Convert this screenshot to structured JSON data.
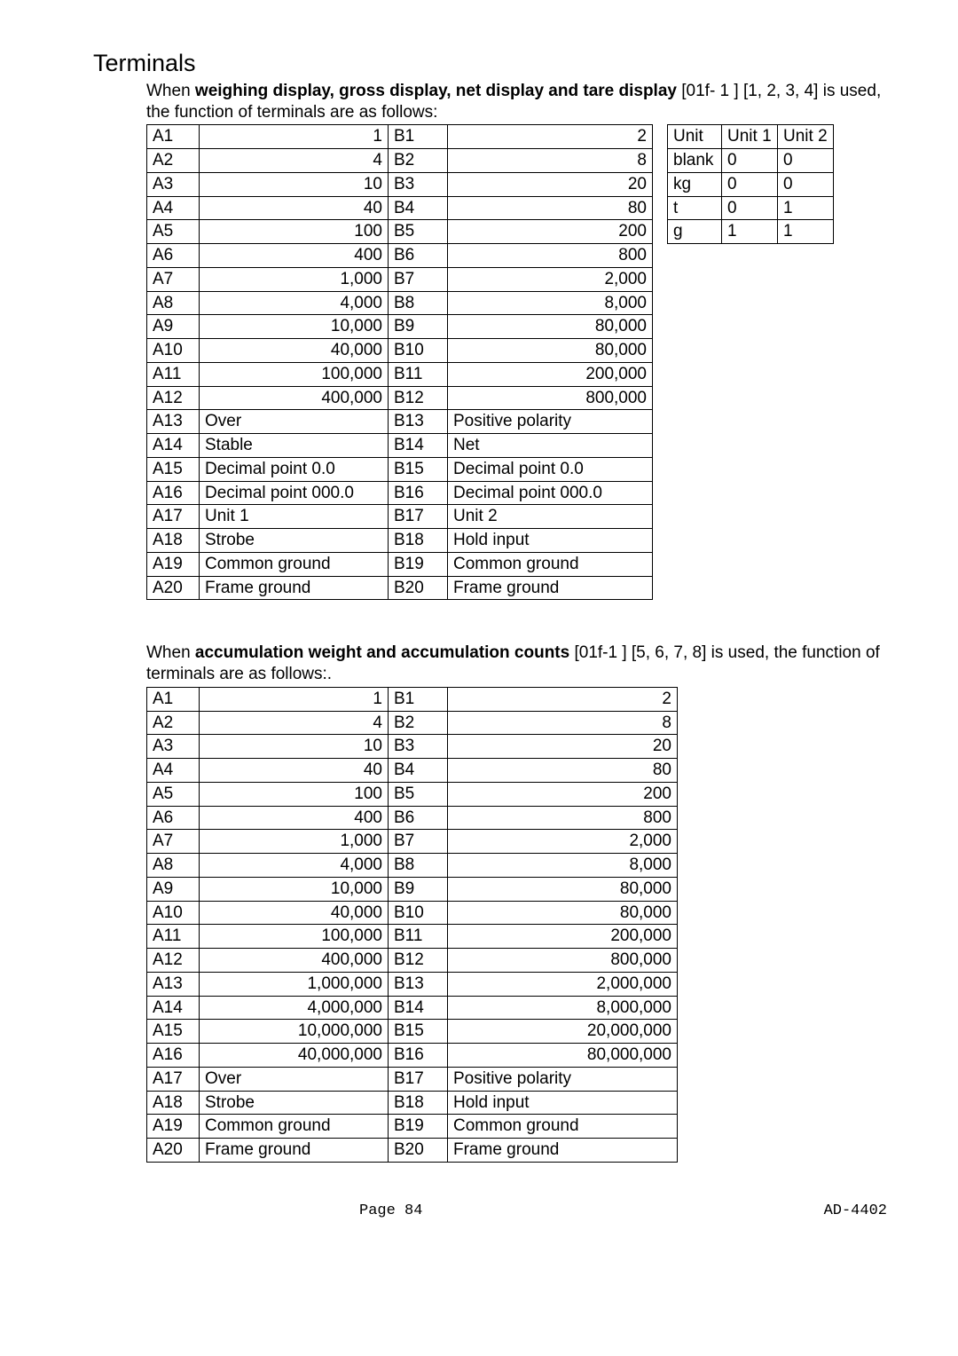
{
  "section_title": "Terminals",
  "intro1_a": "When ",
  "intro1_b": "weighing display, gross display, net display and tare display",
  "intro1_c": " [01f- 1   ]  [1, 2, 3, 4] is used, the function of terminals are as follows:",
  "table1": {
    "rows": [
      {
        "a": "A1",
        "av": "1",
        "b": "B1",
        "bv": "2",
        "avnum": true,
        "bvnum": true
      },
      {
        "a": "A2",
        "av": "4",
        "b": "B2",
        "bv": "8",
        "avnum": true,
        "bvnum": true
      },
      {
        "a": "A3",
        "av": "10",
        "b": "B3",
        "bv": "20",
        "avnum": true,
        "bvnum": true
      },
      {
        "a": "A4",
        "av": "40",
        "b": "B4",
        "bv": "80",
        "avnum": true,
        "bvnum": true
      },
      {
        "a": "A5",
        "av": "100",
        "b": "B5",
        "bv": "200",
        "avnum": true,
        "bvnum": true
      },
      {
        "a": "A6",
        "av": "400",
        "b": "B6",
        "bv": "800",
        "avnum": true,
        "bvnum": true
      },
      {
        "a": "A7",
        "av": "1,000",
        "b": "B7",
        "bv": "2,000",
        "avnum": true,
        "bvnum": true
      },
      {
        "a": "A8",
        "av": "4,000",
        "b": "B8",
        "bv": "8,000",
        "avnum": true,
        "bvnum": true
      },
      {
        "a": "A9",
        "av": "10,000",
        "b": "B9",
        "bv": "80,000",
        "avnum": true,
        "bvnum": true
      },
      {
        "a": "A10",
        "av": "40,000",
        "b": "B10",
        "bv": "80,000",
        "avnum": true,
        "bvnum": true
      },
      {
        "a": "A11",
        "av": "100,000",
        "b": "B11",
        "bv": "200,000",
        "avnum": true,
        "bvnum": true
      },
      {
        "a": "A12",
        "av": "400,000",
        "b": "B12",
        "bv": "800,000",
        "avnum": true,
        "bvnum": true
      },
      {
        "a": "A13",
        "av": "Over",
        "b": "B13",
        "bv": "Positive polarity",
        "avnum": false,
        "bvnum": false
      },
      {
        "a": "A14",
        "av": "Stable",
        "b": "B14",
        "bv": "Net",
        "avnum": false,
        "bvnum": false
      },
      {
        "a": "A15",
        "av": "Decimal point 0.0",
        "b": "B15",
        "bv": "Decimal point 0.0",
        "avnum": false,
        "bvnum": false
      },
      {
        "a": "A16",
        "av": "Decimal point 000.0",
        "b": "B16",
        "bv": "Decimal point 000.0",
        "avnum": false,
        "bvnum": false
      },
      {
        "a": "A17",
        "av": "Unit 1",
        "b": "B17",
        "bv": "Unit 2",
        "avnum": false,
        "bvnum": false
      },
      {
        "a": "A18",
        "av": "Strobe",
        "b": "B18",
        "bv": "Hold input",
        "avnum": false,
        "bvnum": false
      },
      {
        "a": "A19",
        "av": "Common ground",
        "b": "B19",
        "bv": "Common ground",
        "avnum": false,
        "bvnum": false
      },
      {
        "a": "A20",
        "av": "Frame ground",
        "b": "B20",
        "bv": "Frame ground",
        "avnum": false,
        "bvnum": false
      }
    ]
  },
  "unit_table": {
    "header": [
      "Unit",
      "Unit 1",
      "Unit 2"
    ],
    "rows": [
      [
        "blank",
        "0",
        "0"
      ],
      [
        "kg",
        "0",
        "0"
      ],
      [
        "t",
        "0",
        "1"
      ],
      [
        "g",
        "1",
        "1"
      ]
    ]
  },
  "intro2_a": "When ",
  "intro2_b": "accumulation weight and accumulation counts",
  "intro2_c": " [01f-1   ]  [5, 6, 7, 8] is used, the function of terminals are as follows:.",
  "table2": {
    "rows": [
      {
        "a": "A1",
        "av": "1",
        "b": "B1",
        "bv": "2",
        "avnum": true,
        "bvnum": true
      },
      {
        "a": "A2",
        "av": "4",
        "b": "B2",
        "bv": "8",
        "avnum": true,
        "bvnum": true
      },
      {
        "a": "A3",
        "av": "10",
        "b": "B3",
        "bv": "20",
        "avnum": true,
        "bvnum": true
      },
      {
        "a": "A4",
        "av": "40",
        "b": "B4",
        "bv": "80",
        "avnum": true,
        "bvnum": true
      },
      {
        "a": "A5",
        "av": "100",
        "b": "B5",
        "bv": "200",
        "avnum": true,
        "bvnum": true
      },
      {
        "a": "A6",
        "av": "400",
        "b": "B6",
        "bv": "800",
        "avnum": true,
        "bvnum": true
      },
      {
        "a": "A7",
        "av": "1,000",
        "b": "B7",
        "bv": "2,000",
        "avnum": true,
        "bvnum": true
      },
      {
        "a": "A8",
        "av": "4,000",
        "b": "B8",
        "bv": "8,000",
        "avnum": true,
        "bvnum": true
      },
      {
        "a": "A9",
        "av": "10,000",
        "b": "B9",
        "bv": "80,000",
        "avnum": true,
        "bvnum": true
      },
      {
        "a": "A10",
        "av": "40,000",
        "b": "B10",
        "bv": "80,000",
        "avnum": true,
        "bvnum": true
      },
      {
        "a": "A11",
        "av": "100,000",
        "b": "B11",
        "bv": "200,000",
        "avnum": true,
        "bvnum": true
      },
      {
        "a": "A12",
        "av": "400,000",
        "b": "B12",
        "bv": "800,000",
        "avnum": true,
        "bvnum": true
      },
      {
        "a": "A13",
        "av": "1,000,000",
        "b": "B13",
        "bv": "2,000,000",
        "avnum": true,
        "bvnum": true
      },
      {
        "a": "A14",
        "av": "4,000,000",
        "b": "B14",
        "bv": "8,000,000",
        "avnum": true,
        "bvnum": true
      },
      {
        "a": "A15",
        "av": "10,000,000",
        "b": "B15",
        "bv": "20,000,000",
        "avnum": true,
        "bvnum": true
      },
      {
        "a": "A16",
        "av": "40,000,000",
        "b": "B16",
        "bv": "80,000,000",
        "avnum": true,
        "bvnum": true
      },
      {
        "a": "A17",
        "av": "Over",
        "b": "B17",
        "bv": "Positive polarity",
        "avnum": false,
        "bvnum": false
      },
      {
        "a": "A18",
        "av": "Strobe",
        "b": "B18",
        "bv": "Hold input",
        "avnum": false,
        "bvnum": false
      },
      {
        "a": "A19",
        "av": "Common ground",
        "b": "B19",
        "bv": "Common ground",
        "avnum": false,
        "bvnum": false
      },
      {
        "a": "A20",
        "av": "Frame ground",
        "b": "B20",
        "bv": "Frame ground",
        "avnum": false,
        "bvnum": false
      }
    ]
  },
  "footer": {
    "page": "Page 84",
    "doc": "AD-4402"
  }
}
